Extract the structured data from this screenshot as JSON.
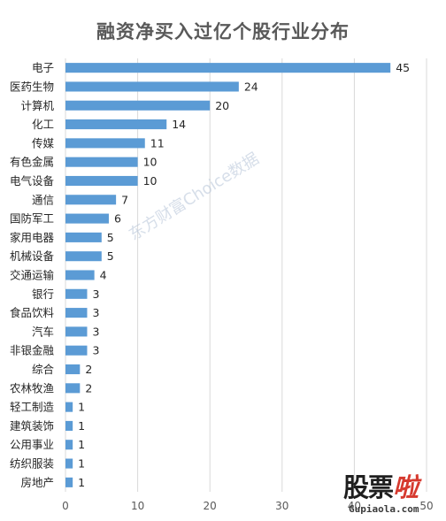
{
  "colors": {
    "bar": "#5b9bd5",
    "grid": "#d9d9d9",
    "title": "#595959",
    "text": "#262626",
    "logo_accent": "#d63a2f"
  },
  "watermark": "东方财富Choice数据",
  "logo": {
    "main": "股票",
    "accent": "啦",
    "sub": "Gupiaola.com"
  },
  "chart_data": {
    "type": "bar",
    "orientation": "horizontal",
    "title": "融资净买入过亿个股行业分布",
    "categories": [
      "电子",
      "医药生物",
      "计算机",
      "化工",
      "传媒",
      "有色金属",
      "电气设备",
      "通信",
      "国防军工",
      "家用电器",
      "机械设备",
      "交通运输",
      "银行",
      "食品饮料",
      "汽车",
      "非银金融",
      "综合",
      "农林牧渔",
      "轻工制造",
      "建筑装饰",
      "公用事业",
      "纺织服装",
      "房地产"
    ],
    "values": [
      45,
      24,
      20,
      14,
      11,
      10,
      10,
      7,
      6,
      5,
      5,
      4,
      3,
      3,
      3,
      3,
      2,
      2,
      1,
      1,
      1,
      1,
      1
    ],
    "x_ticks": [
      "0",
      "10",
      "20",
      "30",
      "40",
      "50"
    ],
    "xlim": [
      0,
      50
    ],
    "grid": true,
    "legend": "none",
    "data_labels": true
  }
}
